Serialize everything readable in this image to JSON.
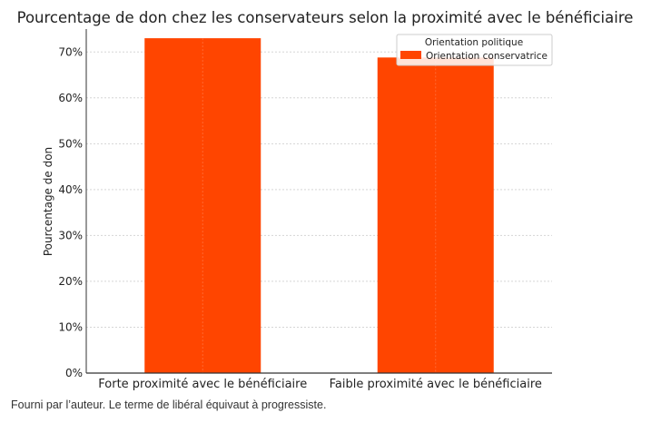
{
  "chart_data": {
    "type": "bar",
    "title": "Pourcentage de don chez les conservateurs selon la proximité avec le bénéficiaire",
    "xlabel": "",
    "ylabel": "Pourcentage de don",
    "categories": [
      "Forte proximité avec le bénéficiaire",
      "Faible proximité avec le bénéficiaire"
    ],
    "series": [
      {
        "name": "Orientation conservatrice",
        "values": [
          73,
          68.8
        ],
        "color": "#ff4500"
      }
    ],
    "ylim": [
      0,
      75
    ],
    "yticks": [
      0,
      10,
      20,
      30,
      40,
      50,
      60,
      70
    ],
    "ytick_labels": [
      "0%",
      "10%",
      "20%",
      "30%",
      "40%",
      "50%",
      "60%",
      "70%"
    ],
    "grid": true,
    "legend": {
      "title": "Orientation politique",
      "placement": "top-right"
    }
  },
  "caption": "Fourni par l’auteur. Le terme de libéral équivaut à progressiste."
}
